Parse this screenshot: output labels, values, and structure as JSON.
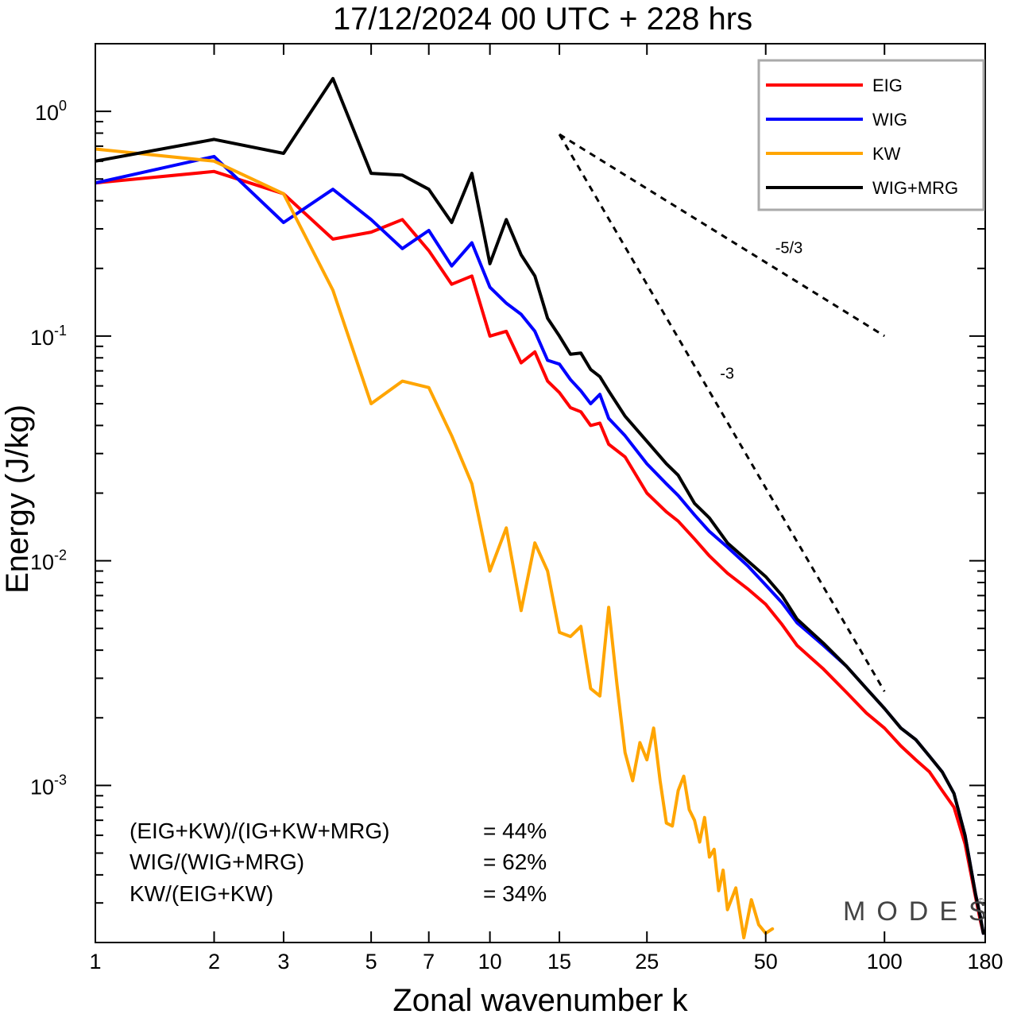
{
  "title": "17/12/2024  00 UTC  + 228 hrs",
  "chart_data": {
    "type": "line",
    "title": "17/12/2024  00 UTC  + 228 hrs",
    "xlabel": "Zonal wavenumber k",
    "ylabel": "Energy (J/kg)",
    "xscale": "log",
    "yscale": "log",
    "xlim": [
      1,
      180
    ],
    "ylim": [
      0.0002,
      2.0
    ],
    "x_ticks": [
      1,
      2,
      3,
      5,
      7,
      10,
      15,
      25,
      50,
      100,
      180
    ],
    "y_ticks": [
      {
        "value": 1,
        "base": "10",
        "exp": "0"
      },
      {
        "value": 0.1,
        "base": "10",
        "exp": "-1"
      },
      {
        "value": 0.01,
        "base": "10",
        "exp": "-2"
      },
      {
        "value": 0.001,
        "base": "10",
        "exp": "-3"
      }
    ],
    "grid": false,
    "legend_position": "top-right",
    "series": [
      {
        "name": "EIG",
        "color": "#ff0000",
        "x": [
          1,
          2,
          3,
          4,
          5,
          6,
          7,
          8,
          9,
          10,
          11,
          12,
          13,
          14,
          15,
          16,
          17,
          18,
          19,
          20,
          22,
          25,
          28,
          30,
          33,
          36,
          40,
          45,
          50,
          55,
          60,
          70,
          80,
          90,
          100,
          110,
          120,
          130,
          140,
          150,
          160,
          170,
          175,
          178
        ],
        "y": [
          0.48,
          0.54,
          0.43,
          0.27,
          0.29,
          0.33,
          0.24,
          0.17,
          0.185,
          0.1,
          0.105,
          0.076,
          0.085,
          0.063,
          0.056,
          0.048,
          0.046,
          0.04,
          0.041,
          0.033,
          0.029,
          0.02,
          0.0165,
          0.015,
          0.0125,
          0.0105,
          0.0088,
          0.0075,
          0.0064,
          0.0052,
          0.0042,
          0.0033,
          0.0026,
          0.0021,
          0.0018,
          0.0015,
          0.0013,
          0.00115,
          0.00095,
          0.0008,
          0.00055,
          0.00032,
          0.00025,
          0.00022
        ]
      },
      {
        "name": "WIG",
        "color": "#0000ff",
        "x": [
          1,
          2,
          3,
          4,
          5,
          6,
          7,
          8,
          9,
          10,
          11,
          12,
          13,
          14,
          15,
          16,
          17,
          18,
          19,
          20,
          22,
          25,
          28,
          30,
          33,
          36,
          40,
          45,
          50,
          55,
          60,
          70,
          80,
          90,
          100,
          110,
          120,
          130,
          140,
          150,
          160,
          170,
          175,
          178
        ],
        "y": [
          0.48,
          0.63,
          0.32,
          0.45,
          0.33,
          0.245,
          0.295,
          0.205,
          0.26,
          0.165,
          0.14,
          0.125,
          0.105,
          0.078,
          0.075,
          0.064,
          0.057,
          0.05,
          0.055,
          0.043,
          0.036,
          0.027,
          0.022,
          0.0195,
          0.016,
          0.0135,
          0.0115,
          0.0095,
          0.0078,
          0.0065,
          0.0053,
          0.0042,
          0.0034,
          0.0027,
          0.0022,
          0.0018,
          0.0016,
          0.00135,
          0.00115,
          0.00092,
          0.0006,
          0.00033,
          0.00026,
          0.00022
        ]
      },
      {
        "name": "KW",
        "color": "#ffa500",
        "x": [
          1,
          2,
          3,
          4,
          5,
          6,
          7,
          8,
          9,
          10,
          11,
          12,
          13,
          14,
          15,
          16,
          17,
          18,
          19,
          20,
          21,
          22,
          23,
          24,
          25,
          26,
          27,
          28,
          29,
          30,
          31,
          32,
          33,
          34,
          35,
          36,
          37,
          38,
          39,
          40,
          42,
          44,
          46,
          48,
          50,
          52
        ],
        "y": [
          0.68,
          0.6,
          0.43,
          0.16,
          0.05,
          0.063,
          0.059,
          0.036,
          0.022,
          0.009,
          0.014,
          0.006,
          0.012,
          0.009,
          0.0048,
          0.0046,
          0.0051,
          0.0027,
          0.0025,
          0.0062,
          0.0028,
          0.0014,
          0.00105,
          0.00155,
          0.0013,
          0.0018,
          0.00105,
          0.00068,
          0.00066,
          0.00095,
          0.0011,
          0.00078,
          0.0007,
          0.00056,
          0.00072,
          0.00048,
          0.00052,
          0.00034,
          0.00042,
          0.00028,
          0.00035,
          0.00021,
          0.00031,
          0.00024,
          0.00022,
          0.00023
        ]
      },
      {
        "name": "WIG+MRG",
        "color": "#000000",
        "x": [
          1,
          2,
          3,
          4,
          5,
          6,
          7,
          8,
          9,
          10,
          11,
          12,
          13,
          14,
          15,
          16,
          17,
          18,
          19,
          20,
          22,
          25,
          28,
          30,
          33,
          36,
          40,
          45,
          50,
          55,
          60,
          70,
          80,
          90,
          100,
          110,
          120,
          130,
          140,
          150,
          160,
          170,
          175,
          178
        ],
        "y": [
          0.6,
          0.75,
          0.65,
          1.4,
          0.53,
          0.52,
          0.45,
          0.32,
          0.53,
          0.21,
          0.33,
          0.23,
          0.185,
          0.12,
          0.1,
          0.083,
          0.084,
          0.071,
          0.066,
          0.057,
          0.044,
          0.034,
          0.027,
          0.024,
          0.018,
          0.0155,
          0.012,
          0.01,
          0.0085,
          0.007,
          0.0055,
          0.0043,
          0.0034,
          0.0027,
          0.0022,
          0.0018,
          0.0016,
          0.00135,
          0.00115,
          0.00092,
          0.0006,
          0.00033,
          0.00026,
          0.00022
        ]
      }
    ],
    "reference_lines": [
      {
        "label": "-5/3",
        "x": [
          15,
          100
        ],
        "y": [
          0.79,
          0.1
        ]
      },
      {
        "label": "-3",
        "x": [
          15,
          100
        ],
        "y": [
          0.79,
          0.00262
        ]
      }
    ]
  },
  "stats": [
    {
      "label": "(EIG+KW)/(IG+KW+MRG)",
      "value": "= 44%"
    },
    {
      "label": "WIG/(WIG+MRG)",
      "value": "= 62%"
    },
    {
      "label": "KW/(EIG+KW)",
      "value": "= 34%"
    }
  ],
  "watermark": "MODES",
  "watermark_mark": "©"
}
